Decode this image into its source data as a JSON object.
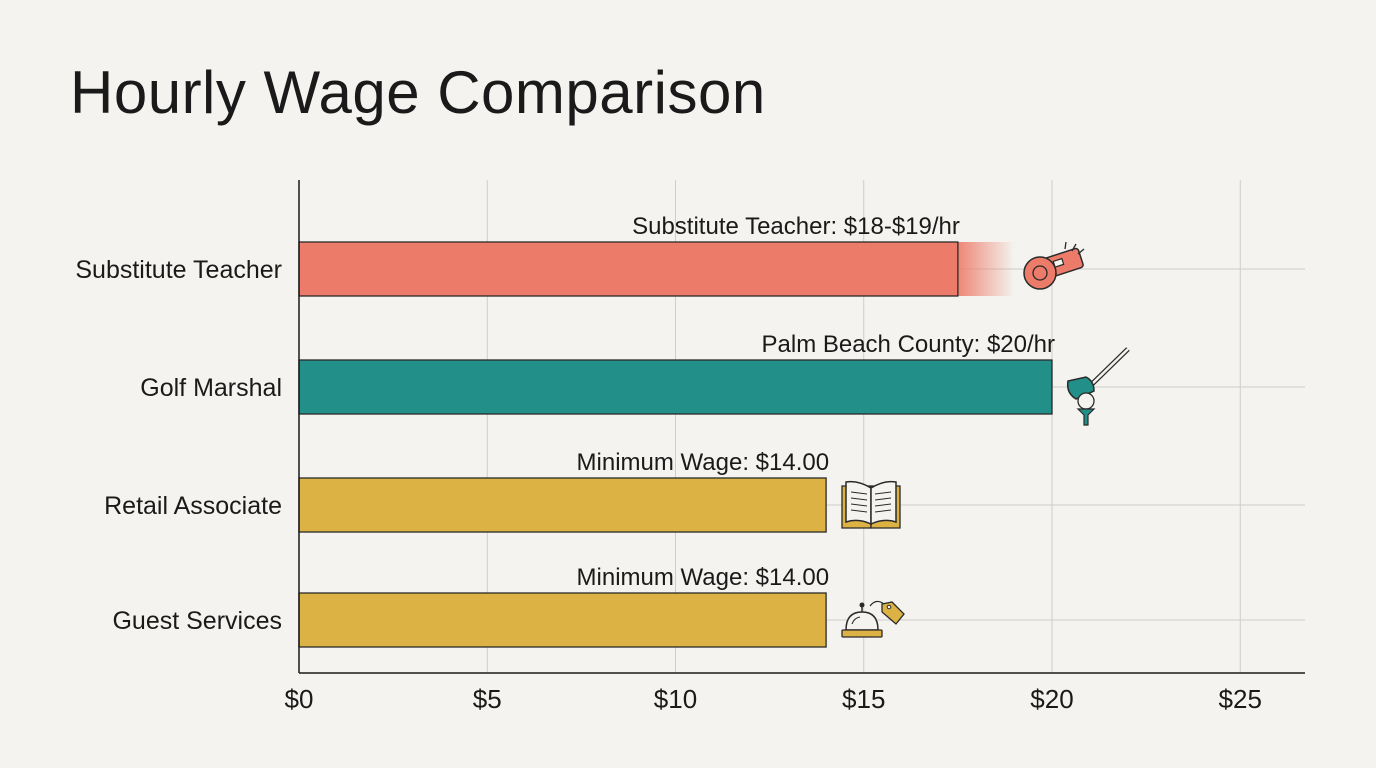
{
  "chart_data": {
    "type": "bar",
    "orientation": "horizontal",
    "title": "Hourly Wage Comparison",
    "categories": [
      "Substitute Teacher",
      "Golf Marshal",
      "Retail Associate",
      "Guest Services"
    ],
    "values": [
      17.5,
      20,
      14,
      14
    ],
    "range_end": [
      19,
      null,
      null,
      null
    ],
    "annotations": [
      "Substitute Teacher: $18-$19/hr",
      "Palm Beach County: $20/hr",
      "Minimum Wage: $14.00",
      "Minimum Wage: $14.00"
    ],
    "colors": [
      "#ec7b69",
      "#228f89",
      "#ddb244",
      "#ddb244"
    ],
    "icons": [
      "whistle-icon",
      "golf-club-icon",
      "open-book-icon",
      "service-bell-icon"
    ],
    "xlim": [
      0,
      26.7
    ],
    "x_ticks": [
      0,
      5,
      10,
      15,
      20,
      25
    ],
    "x_tick_labels": [
      "$0",
      "$5",
      "$10",
      "$15",
      "$20",
      "$25"
    ],
    "xlabel": "",
    "ylabel": "",
    "grid": true,
    "legend": "none"
  }
}
